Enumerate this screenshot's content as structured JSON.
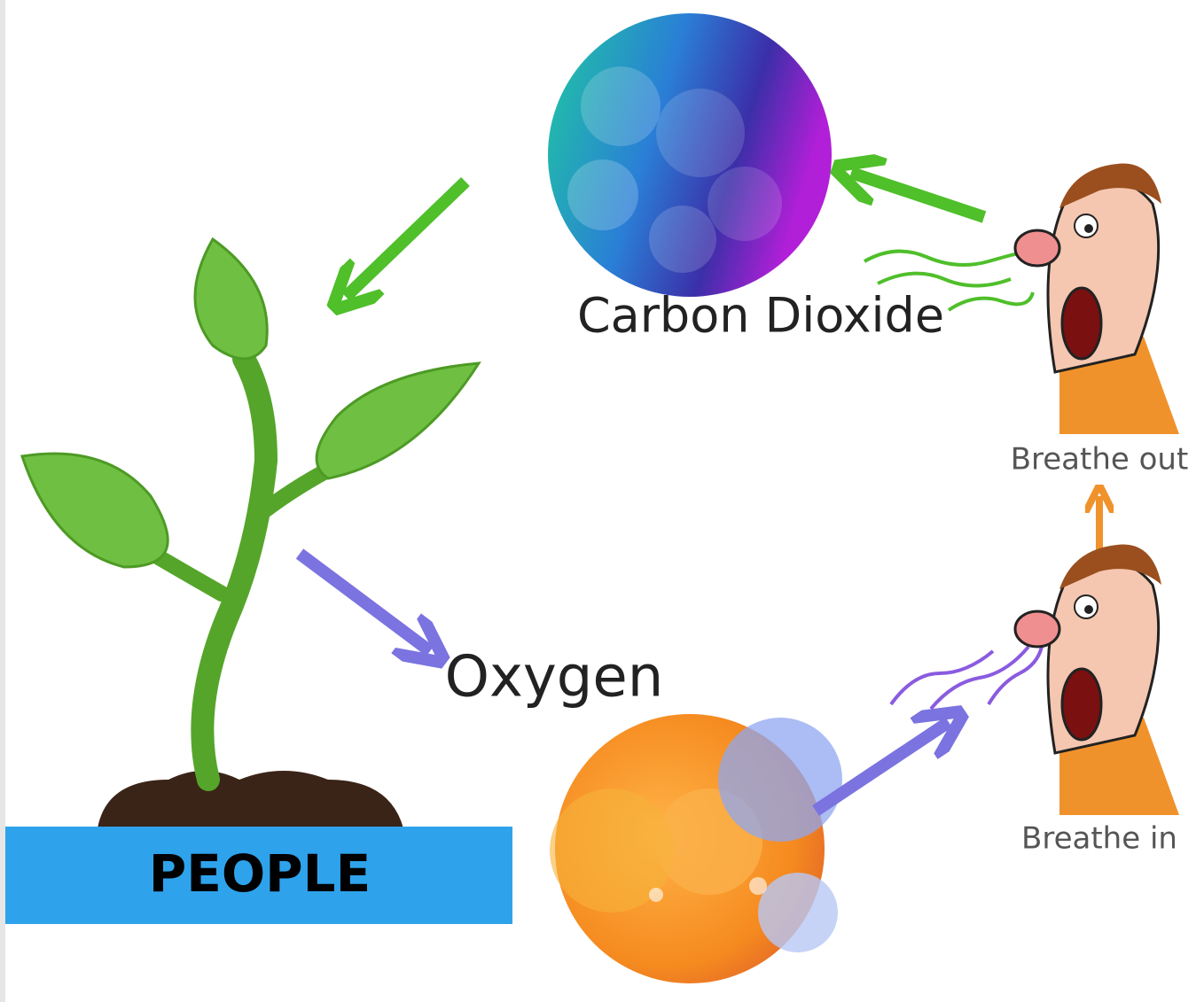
{
  "nodes": [
    {
      "label": "Carbon Dioxide"
    },
    {
      "label": "Oxygen"
    },
    {
      "label": "Breathe out"
    },
    {
      "label": "Breathe in"
    }
  ],
  "banner": {
    "text": "PEOPLE"
  }
}
